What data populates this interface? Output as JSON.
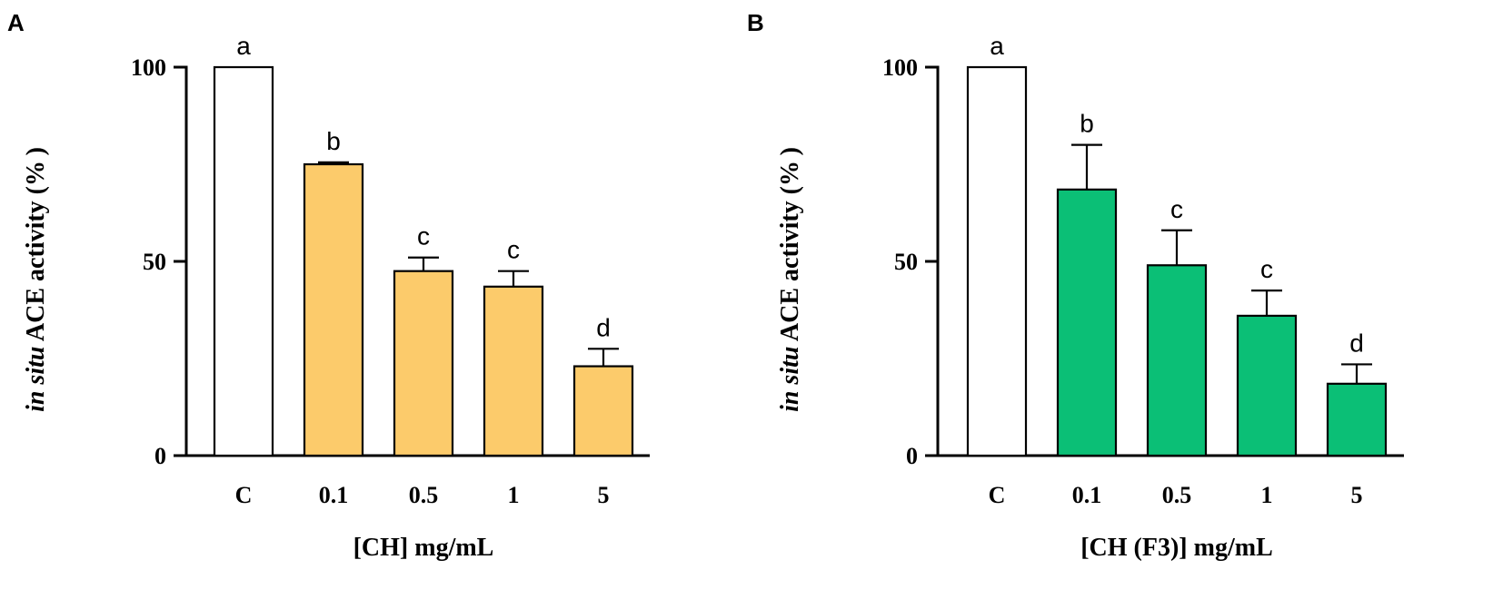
{
  "chart_data": [
    {
      "panel": "A",
      "type": "bar",
      "categories": [
        "C",
        "0.1",
        "0.5",
        "1",
        "5"
      ],
      "values": [
        100,
        75,
        47.5,
        43.5,
        23
      ],
      "errors": [
        0,
        0.5,
        3.5,
        4,
        4.5
      ],
      "significance": [
        "a",
        "b",
        "c",
        "c",
        "d"
      ],
      "colors": [
        "#ffffff",
        "#fccb6b",
        "#fccb6b",
        "#fccb6b",
        "#fccb6b"
      ],
      "xlabel": "[CH] mg/mL",
      "ylabel_italic": "in situ",
      "ylabel_rest": " ACE activity (% )",
      "ylim": [
        0,
        100
      ],
      "yticks": [
        0,
        50,
        100
      ],
      "grid": false
    },
    {
      "panel": "B",
      "type": "bar",
      "categories": [
        "C",
        "0.1",
        "0.5",
        "1",
        "5"
      ],
      "values": [
        100,
        68.5,
        49,
        36,
        18.5
      ],
      "errors": [
        0,
        11.5,
        9,
        6.5,
        5
      ],
      "significance": [
        "a",
        "b",
        "c",
        "c",
        "d"
      ],
      "colors": [
        "#ffffff",
        "#0bbf76",
        "#0bbf76",
        "#0bbf76",
        "#0bbf76"
      ],
      "xlabel": "[CH (F3)] mg/mL",
      "ylabel_italic": "in situ",
      "ylabel_rest": " ACE activity (% )",
      "ylim": [
        0,
        100
      ],
      "yticks": [
        0,
        50,
        100
      ],
      "grid": false
    }
  ]
}
